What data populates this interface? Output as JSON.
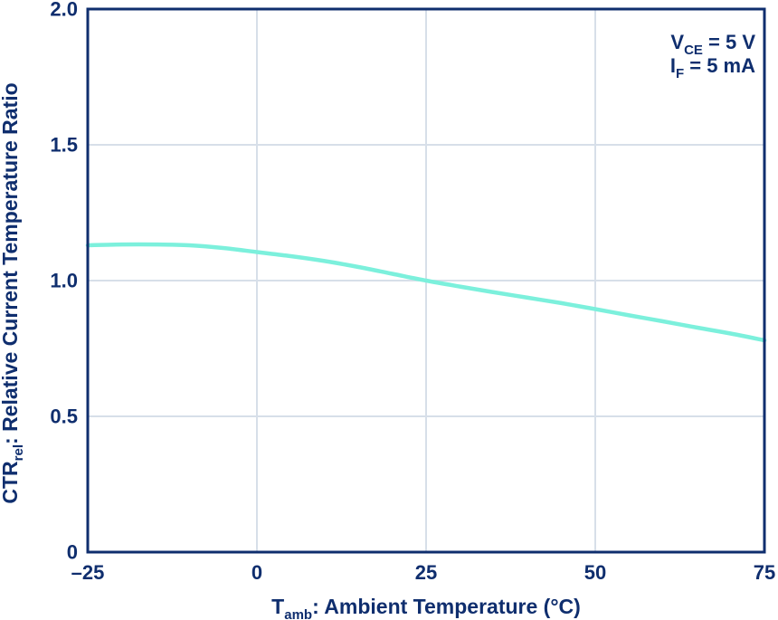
{
  "chart_data": {
    "type": "line",
    "title": "",
    "xlabel": {
      "main": "T",
      "sub": "amb",
      "rest": ": Ambient Temperature (°C)"
    },
    "ylabel": {
      "main": "CTR",
      "sub": "rel",
      "rest": ": Relative Current Temperature Ratio"
    },
    "xlim": [
      -25,
      75
    ],
    "ylim": [
      0,
      2.0
    ],
    "x_ticks": [
      -25,
      0,
      25,
      50,
      75
    ],
    "x_tick_labels": [
      "–25",
      "0",
      "25",
      "50",
      "75"
    ],
    "y_ticks": [
      0,
      0.5,
      1.0,
      1.5,
      2.0
    ],
    "y_tick_labels": [
      "0",
      "0.5",
      "1.0",
      "1.5",
      "2.0"
    ],
    "grid": true,
    "annotation": {
      "line1": {
        "main": "V",
        "sub": "CE",
        "rest": " = 5 V"
      },
      "line2": {
        "main": "I",
        "sub": "F",
        "rest": " = 5 mA"
      }
    },
    "series": [
      {
        "name": "CTR_rel",
        "color": "#7cf0dc",
        "x": [
          -25,
          -20,
          -15,
          -10,
          -5,
          0,
          5,
          10,
          15,
          20,
          25,
          30,
          35,
          40,
          45,
          50,
          55,
          60,
          65,
          70,
          75
        ],
        "y": [
          1.13,
          1.133,
          1.133,
          1.13,
          1.12,
          1.105,
          1.09,
          1.072,
          1.05,
          1.025,
          1.0,
          0.978,
          0.957,
          0.937,
          0.917,
          0.895,
          0.872,
          0.85,
          0.827,
          0.805,
          0.78
        ]
      }
    ]
  },
  "colors": {
    "axis": "#0f2e6e",
    "grid": "#d7dfe9",
    "text": "#0f2e6e",
    "curve": "#7cf0dc"
  }
}
